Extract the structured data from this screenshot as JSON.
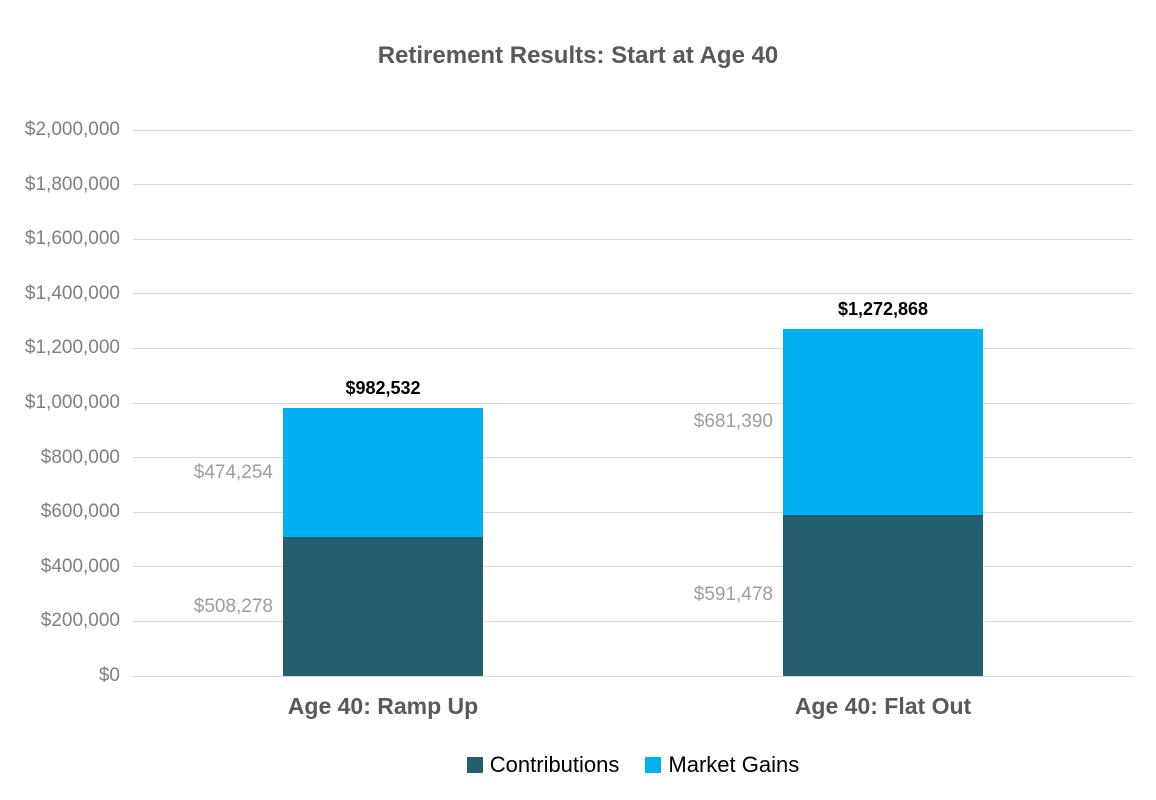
{
  "chart_data": {
    "type": "bar",
    "stacked": true,
    "title": "Retirement Results: Start at Age 40",
    "categories": [
      "Age 40: Ramp Up",
      "Age 40: Flat Out"
    ],
    "series": [
      {
        "name": "Contributions",
        "color": "#255e6e",
        "values": [
          508278,
          591478
        ],
        "labels": [
          "$508,278",
          "$591,478"
        ]
      },
      {
        "name": "Market Gains",
        "color": "#00b0f0",
        "values": [
          474254,
          681390
        ],
        "labels": [
          "$474,254",
          "$681,390"
        ]
      }
    ],
    "totals": [
      982532,
      1272868
    ],
    "total_labels": [
      "$982,532",
      "$1,272,868"
    ],
    "ylim": [
      0,
      2000000
    ],
    "ytick_step": 200000,
    "ytick_labels": [
      "$0",
      "$200,000",
      "$400,000",
      "$600,000",
      "$800,000",
      "$1,000,000",
      "$1,200,000",
      "$1,400,000",
      "$1,600,000",
      "$1,800,000",
      "$2,000,000"
    ],
    "grid": true,
    "legend_position": "bottom",
    "legend": [
      "Contributions",
      "Market Gains"
    ]
  },
  "colors": {
    "background": "#ffffff",
    "gridline": "#d9d9d9",
    "axis_label": "#7f7f7f",
    "title_text": "#595959",
    "category_text": "#595959",
    "segment_label": "#9e9e9e",
    "total_label": "#000000",
    "contributions": "#255e6e",
    "market_gains": "#00b0f0"
  }
}
